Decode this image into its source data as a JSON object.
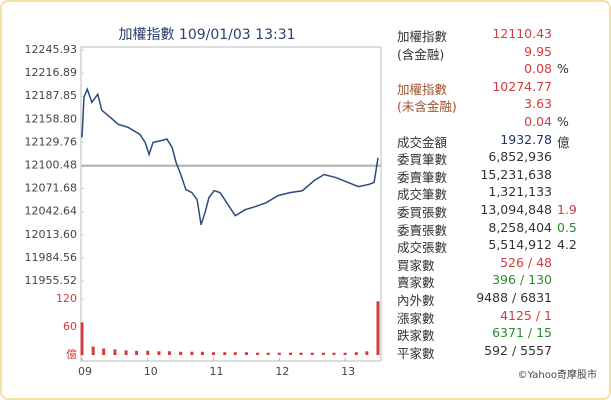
{
  "chart_data": [
    {
      "type": "line",
      "title": "加權指數 109/01/03 13:31",
      "color": "#2b4a7e",
      "reference_line": 12100.48,
      "reference_color": "#bbbbbb",
      "xlim": [
        9,
        13.5
      ],
      "ylim": [
        11955.52,
        12245.93
      ],
      "yticks": [
        12245.93,
        12216.89,
        12187.85,
        {
          "value": 12158.8,
          "label": "12158.80"
        },
        12129.76,
        12100.48,
        12071.68,
        12042.64,
        {
          "value": 12013.6,
          "label": "12013.60"
        },
        11984.56,
        11955.52
      ],
      "x": [
        9.0,
        9.03,
        9.08,
        9.15,
        9.24,
        9.3,
        9.43,
        9.55,
        9.7,
        9.88,
        9.96,
        10.02,
        10.08,
        10.22,
        10.29,
        10.37,
        10.43,
        10.49,
        10.58,
        10.67,
        10.75,
        10.81,
        10.87,
        10.93,
        11.01,
        11.1,
        11.25,
        11.33,
        11.48,
        11.63,
        11.8,
        11.98,
        12.16,
        12.35,
        12.53,
        12.68,
        12.86,
        13.05,
        13.2,
        13.35,
        13.44,
        13.47,
        13.5
      ],
      "values": [
        12136.08,
        12186.59,
        12196.69,
        12180.27,
        12190.38,
        12170.17,
        12161.34,
        12152.5,
        12148.71,
        12139.87,
        12129.77,
        12114.62,
        12129.77,
        12132.3,
        12134,
        12123.46,
        12104.52,
        12091.89,
        12070.43,
        12066.64,
        12057.8,
        12026.24,
        12041.39,
        12060.33,
        12069.17,
        12066.64,
        12047.7,
        12037.6,
        12045.18,
        12048.96,
        12054.01,
        12062.85,
        12066.64,
        12069,
        12081.79,
        12089.37,
        12085.58,
        12079.27,
        12074.22,
        12076.74,
        12079.27,
        12094.42,
        12110.43
      ]
    },
    {
      "type": "bar",
      "color": "#d23c3c",
      "xlim": [
        9,
        13.5
      ],
      "ylim": [
        0,
        120
      ],
      "yticks": [
        120,
        60,
        {
          "value": 0,
          "label": "億"
        }
      ],
      "xticks": [
        {
          "value": 9,
          "label": "09"
        },
        10,
        11,
        12,
        13
      ],
      "x": [
        9,
        9.17,
        9.33,
        9.5,
        9.67,
        9.83,
        10,
        10.17,
        10.33,
        10.5,
        10.67,
        10.83,
        11,
        11.17,
        11.33,
        11.5,
        11.67,
        11.83,
        12,
        12.17,
        12.33,
        12.5,
        12.67,
        12.83,
        13,
        13.17,
        13.33,
        13.5
      ],
      "values": [
        70,
        18,
        14,
        12,
        10,
        9,
        9,
        8,
        8,
        7,
        7,
        7,
        6,
        6,
        6,
        6,
        5,
        5,
        5,
        5,
        5,
        5,
        5,
        5,
        5,
        6,
        8,
        115
      ]
    }
  ],
  "stats": {
    "rows": [
      {
        "label": "加權指數",
        "value": "12110.43",
        "color": "#d23c3c"
      },
      {
        "label": "(含金融)",
        "value": "9.95",
        "color": "#d23c3c"
      },
      {
        "value": "0.08",
        "color": "#d23c3c",
        "extra": "%"
      },
      {
        "label": "加權指數",
        "label_color": "#a0522d",
        "value": "10274.77",
        "color": "#d23c3c"
      },
      {
        "label": "(未含金融)",
        "label_color": "#a0522d",
        "value": "3.63",
        "color": "#d23c3c"
      },
      {
        "value": "0.04",
        "color": "#d23c3c",
        "extra": "%"
      },
      {
        "label": "成交金額",
        "value": "1932.78",
        "color": "#1f3566",
        "extra": "億"
      },
      {
        "label": "委買筆數",
        "value": "6,852,936"
      },
      {
        "label": "委賣筆數",
        "value": "15,231,638"
      },
      {
        "label": "成交筆數",
        "value": "1,321,133"
      },
      {
        "label": "委買張數",
        "value": "13,094,848",
        "extra": "1.9",
        "extra_color": "#d23c3c"
      },
      {
        "label": "委賣張數",
        "value": "8,258,404",
        "extra": "0.5",
        "extra_color": "#2e8b2e"
      },
      {
        "label": "成交張數",
        "value": "5,514,912",
        "extra": "4.2"
      },
      {
        "label": "買家數",
        "value": "526 / 48",
        "color": "#d23c3c"
      },
      {
        "label": "賣家數",
        "value": "396 / 130",
        "color": "#2e8b2e"
      },
      {
        "label": "內外數",
        "value": "9488 / 6831"
      },
      {
        "label": "漲家數",
        "value": "4125 / 1",
        "color": "#d23c3c"
      },
      {
        "label": "跌家數",
        "value": "6371 / 15",
        "color": "#2e8b2e"
      },
      {
        "label": "平家數",
        "value": "592 / 5557"
      }
    ]
  },
  "footer": "©Yahoo奇摩股市"
}
